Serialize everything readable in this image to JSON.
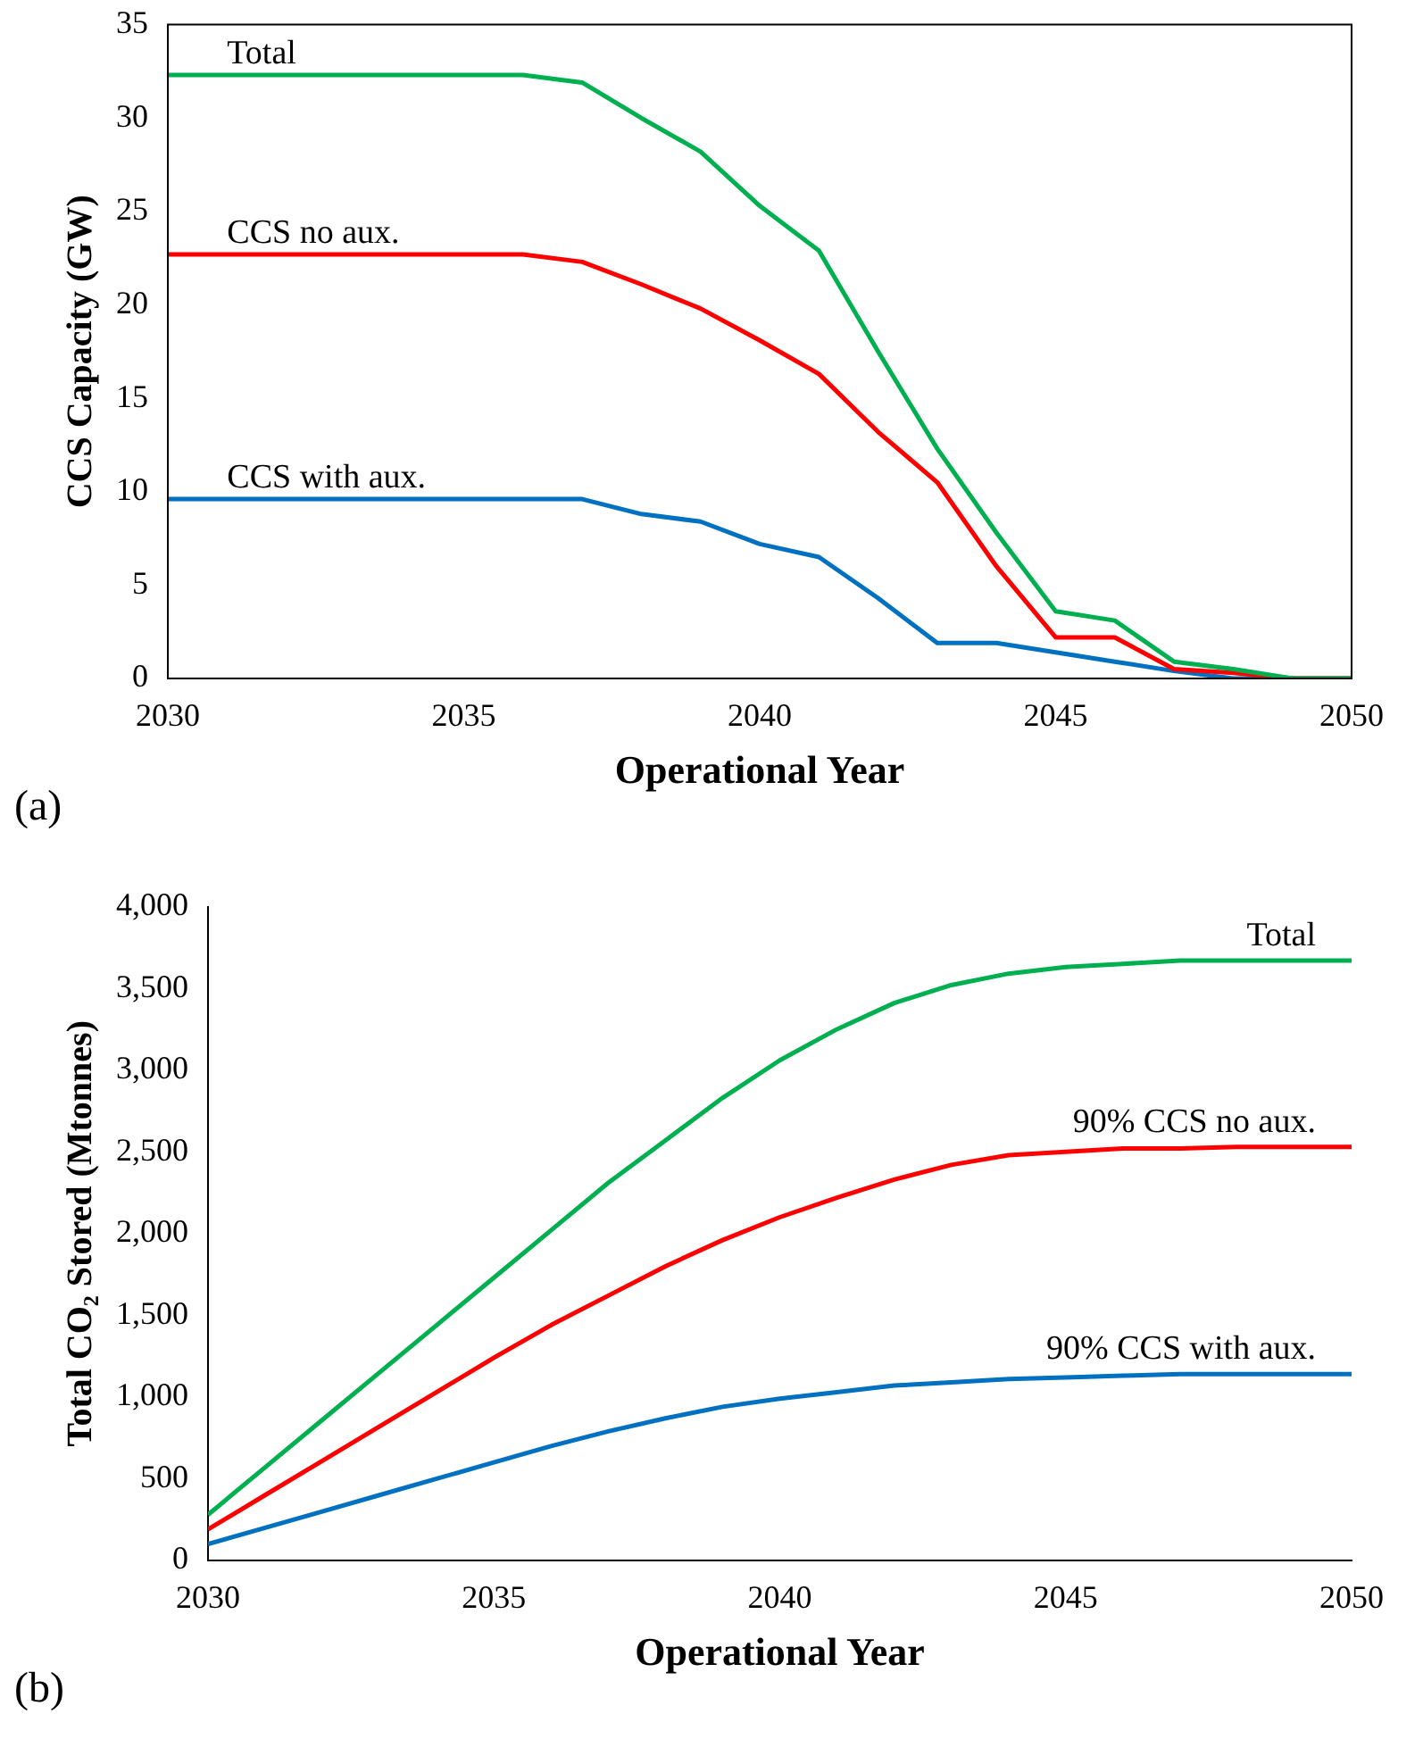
{
  "chart_data": [
    {
      "type": "line",
      "xlabel": "Operational Year",
      "ylabel": "CCS Capacity (GW)",
      "annotations": [
        "(a)"
      ],
      "x": [
        2030,
        2031,
        2032,
        2033,
        2034,
        2035,
        2036,
        2037,
        2038,
        2039,
        2040,
        2041,
        2042,
        2043,
        2044,
        2045,
        2046,
        2047,
        2048,
        2049,
        2050
      ],
      "xlim": [
        2030,
        2050
      ],
      "xticks": [
        2030,
        2035,
        2040,
        2045,
        2050
      ],
      "ylim": [
        0,
        35
      ],
      "yticks": [
        0,
        5,
        10,
        15,
        20,
        25,
        30,
        35
      ],
      "grid": false,
      "legend": false,
      "marker": "none",
      "line_style": "solid",
      "series": [
        {
          "name": "Total",
          "color": "#00b050",
          "values": [
            32.3,
            32.3,
            32.3,
            32.3,
            32.3,
            32.3,
            32.3,
            31.9,
            30.0,
            28.2,
            25.3,
            22.9,
            17.5,
            12.3,
            7.8,
            3.6,
            3.1,
            0.9,
            0.5,
            0,
            0
          ]
        },
        {
          "name": "CCS no aux.",
          "color": "#ff0000",
          "values": [
            22.7,
            22.7,
            22.7,
            22.7,
            22.7,
            22.7,
            22.7,
            22.3,
            21.1,
            19.8,
            18.1,
            16.3,
            13.2,
            10.5,
            6.0,
            2.2,
            2.2,
            0.5,
            0.3,
            0,
            0
          ]
        },
        {
          "name": "CCS with aux.",
          "color": "#0070c0",
          "values": [
            9.6,
            9.6,
            9.6,
            9.6,
            9.6,
            9.6,
            9.6,
            9.6,
            8.8,
            8.4,
            7.2,
            6.5,
            4.3,
            1.9,
            1.9,
            1.4,
            0.9,
            0.4,
            0,
            0,
            0
          ]
        }
      ]
    },
    {
      "type": "line",
      "xlabel": "Operational Year",
      "ylabel": "Total CO₂ Stored (Mtonnes)",
      "annotations": [
        "(b)"
      ],
      "x": [
        2030,
        2031,
        2032,
        2033,
        2034,
        2035,
        2036,
        2037,
        2038,
        2039,
        2040,
        2041,
        2042,
        2043,
        2044,
        2045,
        2046,
        2047,
        2048,
        2049,
        2050
      ],
      "xlim": [
        2030,
        2050
      ],
      "xticks": [
        2030,
        2035,
        2040,
        2045,
        2050
      ],
      "ylim": [
        0,
        4000
      ],
      "yticks": [
        0,
        500,
        {
          "value": 1000,
          "label": "1,000"
        },
        {
          "value": 1500,
          "label": "1,500"
        },
        {
          "value": 2000,
          "label": "2,000"
        },
        {
          "value": 2500,
          "label": "2,500"
        },
        {
          "value": 3000,
          "label": "3,000"
        },
        {
          "value": 3500,
          "label": "3,500"
        },
        {
          "value": 4000,
          "label": "4,000"
        }
      ],
      "grid": false,
      "legend": false,
      "marker": "none",
      "line_style": "solid",
      "series": [
        {
          "name": "Total",
          "color": "#00b050",
          "values": [
            280,
            570,
            860,
            1150,
            1440,
            1730,
            2020,
            2310,
            2570,
            2830,
            3060,
            3250,
            3410,
            3520,
            3590,
            3630,
            3650,
            3670,
            3670,
            3670,
            3670
          ]
        },
        {
          "name": "90% CCS no aux.",
          "color": "#ff0000",
          "values": [
            190,
            400,
            610,
            820,
            1030,
            1240,
            1440,
            1620,
            1800,
            1960,
            2100,
            2220,
            2330,
            2420,
            2480,
            2500,
            2520,
            2520,
            2530,
            2530,
            2530
          ]
        },
        {
          "name": "90% CCS with aux.",
          "color": "#0070c0",
          "values": [
            100,
            200,
            300,
            400,
            500,
            600,
            700,
            790,
            870,
            940,
            990,
            1030,
            1070,
            1090,
            1110,
            1120,
            1130,
            1140,
            1140,
            1140,
            1140
          ]
        }
      ]
    }
  ]
}
